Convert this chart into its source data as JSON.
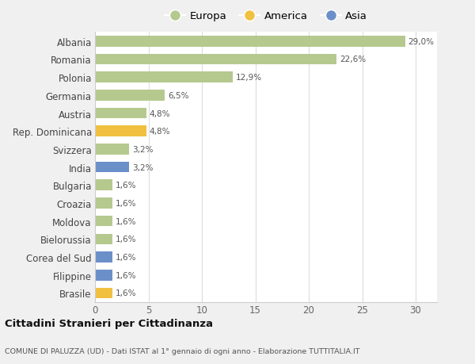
{
  "countries": [
    "Albania",
    "Romania",
    "Polonia",
    "Germania",
    "Austria",
    "Rep. Dominicana",
    "Svizzera",
    "India",
    "Bulgaria",
    "Croazia",
    "Moldova",
    "Bielorussia",
    "Corea del Sud",
    "Filippine",
    "Brasile"
  ],
  "values": [
    29.0,
    22.6,
    12.9,
    6.5,
    4.8,
    4.8,
    3.2,
    3.2,
    1.6,
    1.6,
    1.6,
    1.6,
    1.6,
    1.6,
    1.6
  ],
  "labels": [
    "29,0%",
    "22,6%",
    "12,9%",
    "6,5%",
    "4,8%",
    "4,8%",
    "3,2%",
    "3,2%",
    "1,6%",
    "1,6%",
    "1,6%",
    "1,6%",
    "1,6%",
    "1,6%",
    "1,6%"
  ],
  "categories": [
    "Europa",
    "Europa",
    "Europa",
    "Europa",
    "Europa",
    "America",
    "Europa",
    "Asia",
    "Europa",
    "Europa",
    "Europa",
    "Europa",
    "Asia",
    "Asia",
    "America"
  ],
  "colors": {
    "Europa": "#b5c98e",
    "America": "#f0c040",
    "Asia": "#6b8fc9"
  },
  "legend": [
    "Europa",
    "America",
    "Asia"
  ],
  "bg_color": "#f0f0f0",
  "plot_bg": "#ffffff",
  "title": "Cittadini Stranieri per Cittadinanza",
  "subtitle": "COMUNE DI PALUZZA (UD) - Dati ISTAT al 1° gennaio di ogni anno - Elaborazione TUTTITALIA.IT",
  "xlim": [
    0,
    32
  ],
  "xticks": [
    0,
    5,
    10,
    15,
    20,
    25,
    30
  ]
}
